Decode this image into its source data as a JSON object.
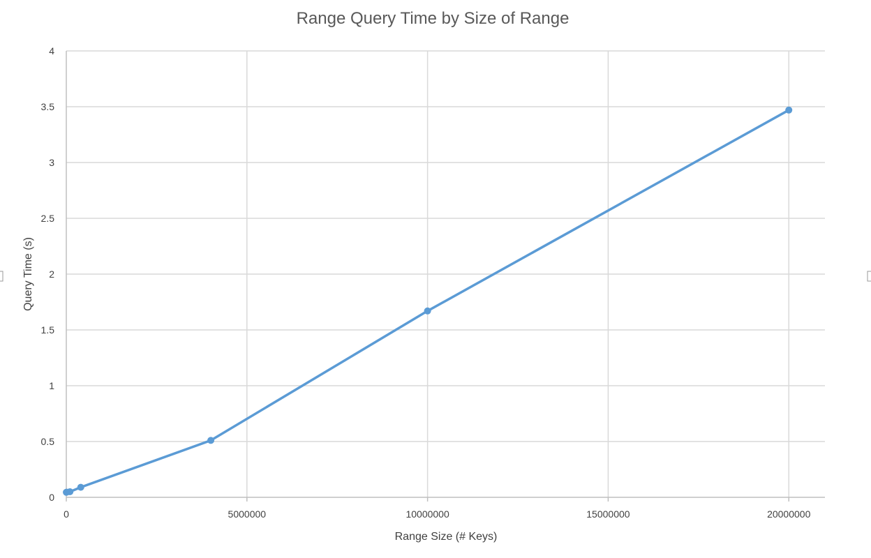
{
  "chart_data": {
    "type": "line",
    "title": "Range Query Time by Size of Range",
    "xlabel": "Range Size (# Keys)",
    "ylabel": "Query Time (s)",
    "xlim": [
      0,
      21000000
    ],
    "ylim": [
      0,
      4
    ],
    "x_ticks": [
      0,
      5000000,
      10000000,
      15000000,
      20000000
    ],
    "x_tick_labels": [
      "0",
      "5000000",
      "10000000",
      "15000000",
      "20000000"
    ],
    "y_ticks": [
      0,
      0.5,
      1,
      1.5,
      2,
      2.5,
      3,
      3.5,
      4
    ],
    "y_tick_labels": [
      "0",
      "0.5",
      "1",
      "1.5",
      "2",
      "2.5",
      "3",
      "3.5",
      "4"
    ],
    "grid": true,
    "legend": "none",
    "series": [
      {
        "x": [
          1000,
          10000,
          100000,
          400000,
          4000000,
          10000000,
          20000000
        ],
        "y": [
          0.045,
          0.046,
          0.05,
          0.09,
          0.51,
          1.67,
          3.47
        ],
        "color": "#5b9bd5"
      }
    ]
  }
}
